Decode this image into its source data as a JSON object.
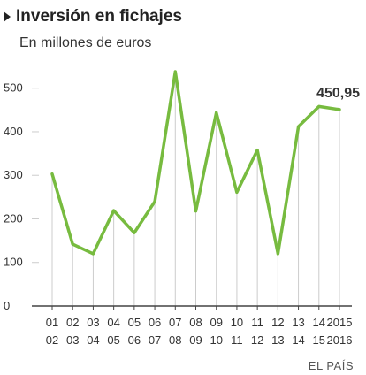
{
  "header": {
    "title": "Inversión en fichajes",
    "subtitle": "En millones de euros"
  },
  "source": "EL PAÍS",
  "chart_data": {
    "type": "line",
    "title": "Inversión en fichajes",
    "subtitle": "En millones de euros",
    "categories": [
      "01-02",
      "02-03",
      "03-04",
      "04-05",
      "05-06",
      "06-07",
      "07-08",
      "08-09",
      "09-10",
      "10-11",
      "11-12",
      "12-13",
      "13-14",
      "14-15",
      "2015-2016"
    ],
    "x_tick_top": [
      "01",
      "02",
      "03",
      "04",
      "05",
      "06",
      "07",
      "08",
      "09",
      "10",
      "11",
      "12",
      "13",
      "14",
      "2015"
    ],
    "x_tick_bottom": [
      "02",
      "03",
      "04",
      "05",
      "06",
      "07",
      "08",
      "09",
      "10",
      "11",
      "12",
      "13",
      "14",
      "15",
      "2016"
    ],
    "series": [
      {
        "values": [
          303,
          142,
          120,
          219,
          168,
          240,
          538,
          218,
          444,
          261,
          358,
          120,
          412,
          458,
          450.95
        ]
      }
    ],
    "y_ticks": [
      0,
      100,
      200,
      300,
      400,
      500
    ],
    "ylim": [
      0,
      540
    ],
    "annotation": "450,95",
    "grid": "vertical",
    "line_color": "#77bb3f",
    "grid_color": "#cccccc"
  }
}
